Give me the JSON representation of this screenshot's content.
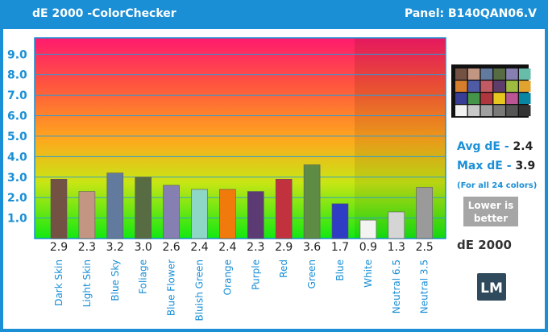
{
  "header": {
    "title": "dE 2000 -ColorChecker",
    "panel": "Panel: B140QAN06.V"
  },
  "stats": {
    "avg_label": "Avg dE - ",
    "avg_value": "2.4",
    "max_label": "Max dE - ",
    "max_value": "3.9",
    "note": "(For all 24 colors)",
    "lower_better": [
      "Lower is",
      "better"
    ]
  },
  "logo_text": "LM",
  "chart_data": {
    "type": "bar",
    "title": "dE 2000",
    "ylim": [
      0,
      9.8
    ],
    "yticks": [
      1.0,
      2.0,
      3.0,
      4.0,
      5.0,
      6.0,
      7.0,
      8.0,
      9.0
    ],
    "ytick_labels": [
      "1.0",
      "2.0",
      "3.0",
      "4.0",
      "5.0",
      "6.0",
      "7.0",
      "8.0",
      "9.0"
    ],
    "grid": true,
    "categories": [
      "Dark Skin",
      "Light Skin",
      "Blue Sky",
      "Foliage",
      "Blue Flower",
      "Bluish Green",
      "Orange",
      "Purple",
      "Red",
      "Green",
      "Blue",
      "White",
      "Neutral 6.5",
      "Neutral 3.5"
    ],
    "values": [
      2.9,
      2.3,
      3.2,
      3.0,
      2.6,
      2.4,
      2.4,
      2.3,
      2.9,
      3.6,
      1.7,
      0.9,
      1.3,
      2.5
    ],
    "value_labels": [
      "2.9",
      "2.3",
      "3.2",
      "3.0",
      "2.6",
      "2.4",
      "2.4",
      "2.3",
      "2.9",
      "3.6",
      "1.7",
      "0.9",
      "1.3",
      "2.5"
    ],
    "bar_colors": [
      "#735244",
      "#c29682",
      "#627a9d",
      "#576c43",
      "#8580b1",
      "#8ed6c6",
      "#f07a0c",
      "#5c3b74",
      "#c1323e",
      "#5e8c45",
      "#2f3cc4",
      "#f3f3f2",
      "#d5d5d5",
      "#9a9a9a"
    ]
  },
  "colorchecker_swatches": [
    "#735244",
    "#c29682",
    "#627a9d",
    "#576c43",
    "#8580b1",
    "#67bdaa",
    "#d67e2c",
    "#505ba6",
    "#c15a63",
    "#5e3c6c",
    "#9dbc40",
    "#e0a32e",
    "#383d96",
    "#469449",
    "#af363c",
    "#e7c71f",
    "#bb5695",
    "#0885a1",
    "#f3f3f2",
    "#c8c8c8",
    "#a0a0a0",
    "#7a7a79",
    "#555555",
    "#343434"
  ]
}
